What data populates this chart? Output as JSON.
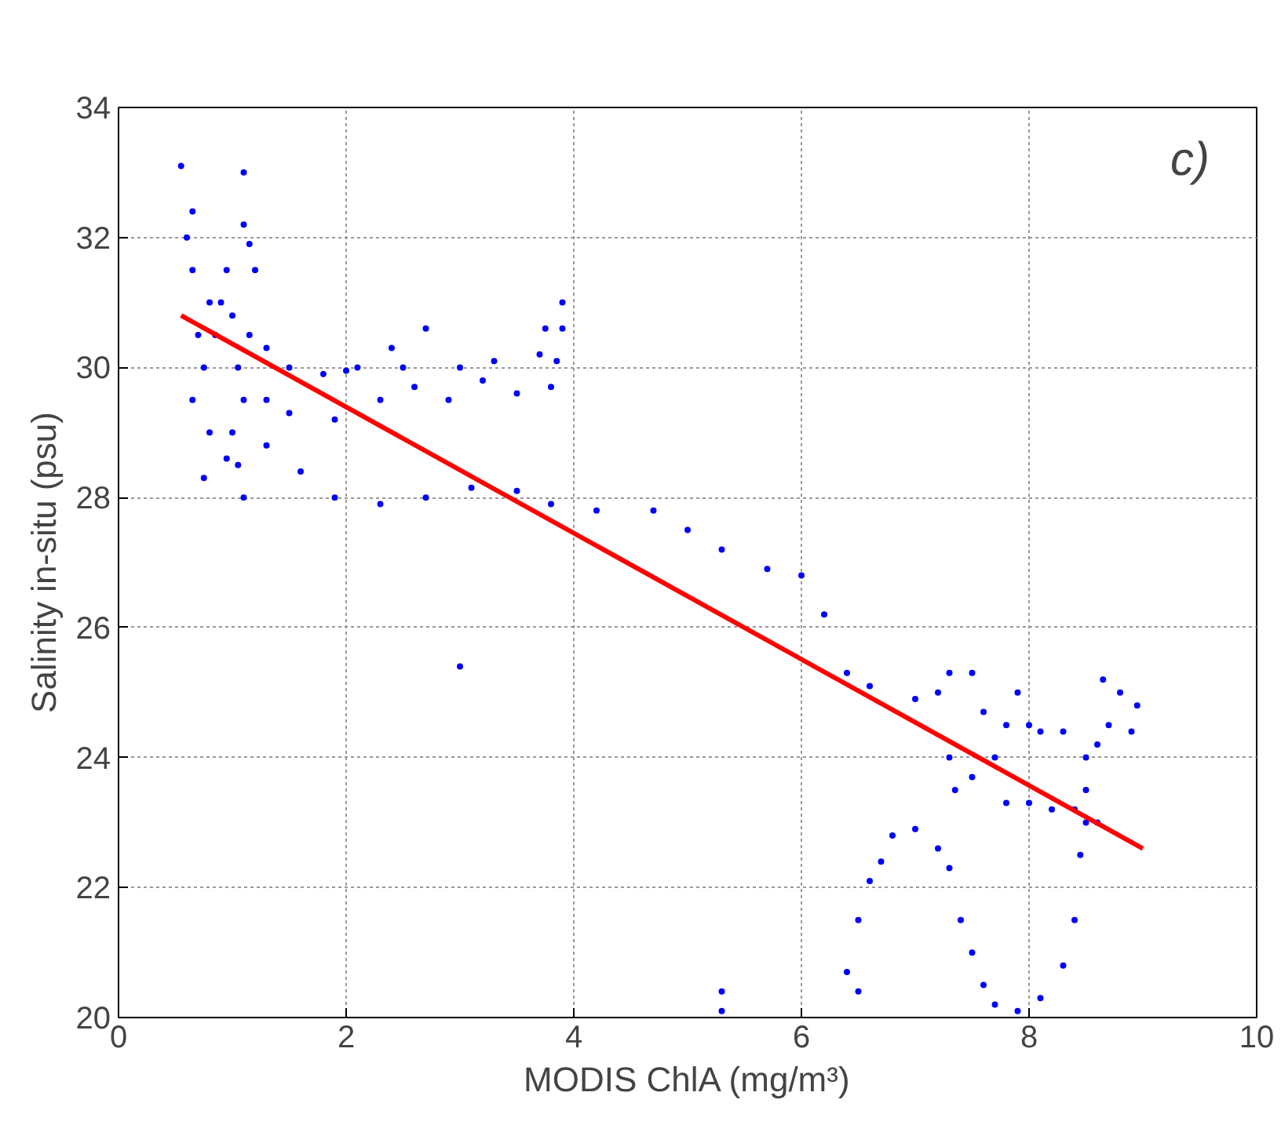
{
  "chart_data": {
    "type": "scatter",
    "xlabel": "MODIS ChlA (mg/m³)",
    "ylabel": "Salinity in-situ (psu)",
    "annotations": [
      "c)"
    ],
    "xlim": [
      0,
      10
    ],
    "ylim": [
      20,
      34
    ],
    "xticks": [
      0,
      2,
      4,
      6,
      8,
      10
    ],
    "yticks": [
      20,
      22,
      24,
      26,
      28,
      30,
      32,
      34
    ],
    "grid": true,
    "series": [
      {
        "color": "#0000ff",
        "marker": "circle",
        "x": [
          0.55,
          1.1,
          1.1,
          0.65,
          0.6,
          0.65,
          0.7,
          0.65,
          0.75,
          0.8,
          0.85,
          0.9,
          0.95,
          1.0,
          1.05,
          1.0,
          1.1,
          1.05,
          1.1,
          1.15,
          1.15,
          1.2,
          0.8,
          0.75,
          1.3,
          1.3,
          0.95,
          1.5,
          1.8,
          2.1,
          2.4,
          2.7,
          2.0,
          2.5,
          3.0,
          3.3,
          3.7,
          3.85,
          3.9,
          3.9,
          3.75,
          1.5,
          1.9,
          2.3,
          2.6,
          2.9,
          3.2,
          3.5,
          3.8,
          1.3,
          1.6,
          1.9,
          2.3,
          2.7,
          3.1,
          3.5,
          3.8,
          4.2,
          4.7,
          5.0,
          5.3,
          5.7,
          6.0,
          6.2,
          6.4,
          6.6,
          7.0,
          7.2,
          7.3,
          7.5,
          7.6,
          7.8,
          7.9,
          8.0,
          7.3,
          7.35,
          7.5,
          7.7,
          7.8,
          8.0,
          8.2,
          8.4,
          8.5,
          8.6,
          8.5,
          8.6,
          8.1,
          8.3,
          8.65,
          8.8,
          8.95,
          8.9,
          8.7,
          6.4,
          6.5,
          6.6,
          6.7,
          6.8,
          7.0,
          7.2,
          7.3,
          7.4,
          7.5,
          7.6,
          7.7,
          7.9,
          8.1,
          8.3,
          8.4,
          8.45,
          8.5,
          3.0,
          5.3,
          5.3,
          6.5
        ],
        "values": [
          33.1,
          33.0,
          32.2,
          32.4,
          32.0,
          31.5,
          30.5,
          29.5,
          28.3,
          29.0,
          30.5,
          31.0,
          31.5,
          30.8,
          30.0,
          29.0,
          28.0,
          28.5,
          29.5,
          30.5,
          31.9,
          31.5,
          31.0,
          30.0,
          30.3,
          29.5,
          28.6,
          30.0,
          29.9,
          30.0,
          30.3,
          30.6,
          29.95,
          30.0,
          30.0,
          30.1,
          30.2,
          30.1,
          30.6,
          31.0,
          30.6,
          29.3,
          29.2,
          29.5,
          29.7,
          29.5,
          29.8,
          29.6,
          29.7,
          28.8,
          28.4,
          28.0,
          27.9,
          28.0,
          28.15,
          28.1,
          27.9,
          27.8,
          27.8,
          27.5,
          27.2,
          26.9,
          26.8,
          26.2,
          25.3,
          25.1,
          24.9,
          25.0,
          25.3,
          25.3,
          24.7,
          24.5,
          25.0,
          24.5,
          24.0,
          23.5,
          23.7,
          24.0,
          23.3,
          23.3,
          23.2,
          23.2,
          23.5,
          23.0,
          24.0,
          24.2,
          24.4,
          24.4,
          25.2,
          25.0,
          24.8,
          24.4,
          24.5,
          20.7,
          21.5,
          22.1,
          22.4,
          22.8,
          22.9,
          22.6,
          22.3,
          21.5,
          21.0,
          20.5,
          20.2,
          20.1,
          20.3,
          20.8,
          21.5,
          22.5,
          23.0,
          25.4,
          20.1,
          20.4,
          20.4
        ]
      },
      {
        "type": "line",
        "color": "#ff0000",
        "x": [
          0.55,
          9.0
        ],
        "values": [
          30.8,
          22.6
        ]
      }
    ]
  }
}
